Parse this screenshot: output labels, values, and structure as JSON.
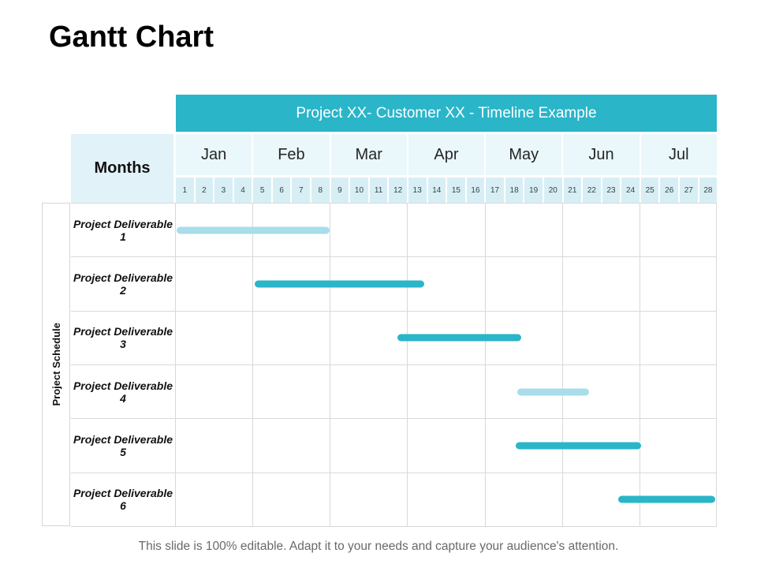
{
  "title": "Gantt Chart",
  "table": {
    "header": "Project XX- Customer XX - Timeline Example",
    "months_label": "Months",
    "schedule_label": "Project Schedule",
    "months": [
      "Jan",
      "Feb",
      "Mar",
      "Apr",
      "May",
      "Jun",
      "Jul"
    ],
    "weeks": [
      "1",
      "2",
      "3",
      "4",
      "5",
      "6",
      "7",
      "8",
      "9",
      "10",
      "11",
      "12",
      "13",
      "14",
      "15",
      "16",
      "17",
      "18",
      "19",
      "20",
      "21",
      "22",
      "23",
      "24",
      "25",
      "26",
      "27",
      "28"
    ]
  },
  "chart_data": {
    "type": "bar",
    "subtype": "gantt",
    "title": "Project XX- Customer XX - Timeline Example",
    "categories": [
      "Project Deliverable 1",
      "Project Deliverable 2",
      "Project Deliverable 3",
      "Project Deliverable 4",
      "Project Deliverable 5",
      "Project Deliverable 6"
    ],
    "x_axis_months": [
      "Jan",
      "Feb",
      "Mar",
      "Apr",
      "May",
      "Jun",
      "Jul"
    ],
    "weeks_per_month": 4,
    "x_range_weeks": [
      0,
      28
    ],
    "grid": "month-columns",
    "legend": false,
    "series": [
      {
        "name": "Project Deliverable 1",
        "start_week": 0.1,
        "end_week": 8.0,
        "color": "light"
      },
      {
        "name": "Project Deliverable 2",
        "start_week": 4.1,
        "end_week": 12.9,
        "color": "teal"
      },
      {
        "name": "Project Deliverable 3",
        "start_week": 11.5,
        "end_week": 17.9,
        "color": "teal"
      },
      {
        "name": "Project Deliverable 4",
        "start_week": 17.7,
        "end_week": 21.4,
        "color": "light"
      },
      {
        "name": "Project Deliverable 5",
        "start_week": 17.6,
        "end_week": 24.1,
        "color": "teal"
      },
      {
        "name": "Project Deliverable 6",
        "start_week": 22.9,
        "end_week": 27.9,
        "color": "teal"
      }
    ]
  },
  "footer": "This slide is 100% editable. Adapt it to your needs and capture your audience's attention.",
  "colors": {
    "teal": "#2ab5c9",
    "light": "#a8dde9",
    "header_text": "#ffffff",
    "months_cell_bg": "#e1f2f8",
    "month_row_bg": "#eaf7fb",
    "week_row_bg": "#d8eef5",
    "gridline": "#d9d9d9",
    "caption_text": "#696969"
  }
}
